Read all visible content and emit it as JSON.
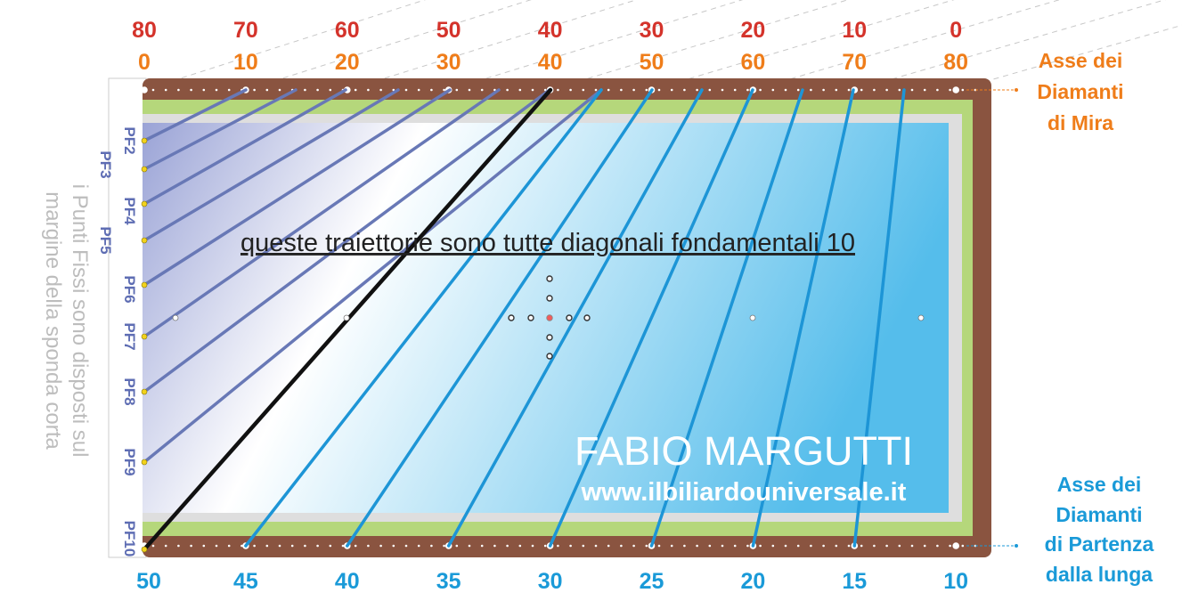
{
  "top_scale_red": [
    "80",
    "70",
    "60",
    "50",
    "40",
    "30",
    "20",
    "10",
    "0"
  ],
  "top_scale_orange": [
    "0",
    "10",
    "20",
    "30",
    "40",
    "50",
    "60",
    "70",
    "80"
  ],
  "bottom_scale": [
    "50",
    "45",
    "40",
    "35",
    "30",
    "25",
    "20",
    "15",
    "10"
  ],
  "fixed_points": [
    "PF2",
    "PF3",
    "PF4",
    "PF5",
    "PF6",
    "PF7",
    "PF8",
    "PF9",
    "PF10"
  ],
  "side_note": [
    "i Punti Fissi sono disposti sul",
    "margine della sponda corta"
  ],
  "axis_aim": [
    "Asse dei",
    "Diamanti",
    "di Mira"
  ],
  "axis_start": [
    "Asse dei",
    "Diamanti",
    "di Partenza",
    "dalla lunga"
  ],
  "headline": "queste traiettorie sono tutte diagonali fondamentali 10",
  "author": "FABIO MARGUTTI",
  "website": "www.ilbiliardouniversale.it",
  "colors": {
    "red_scale": "#d4332b",
    "orange_scale": "#ef7d1a",
    "blue_scale": "#1a9ad8",
    "purple_label": "#5e6db3",
    "rail": "#8a5440",
    "cushion": "#b5d77b",
    "cloth_light": "#ffffff",
    "cloth_blue": "#55bdeb",
    "cloth_purple": "#9aa3d6",
    "line_blue": "#1d95d6",
    "line_purple": "#6878b6",
    "line_black": "#111111",
    "gray_text": "#bdbdbd"
  }
}
